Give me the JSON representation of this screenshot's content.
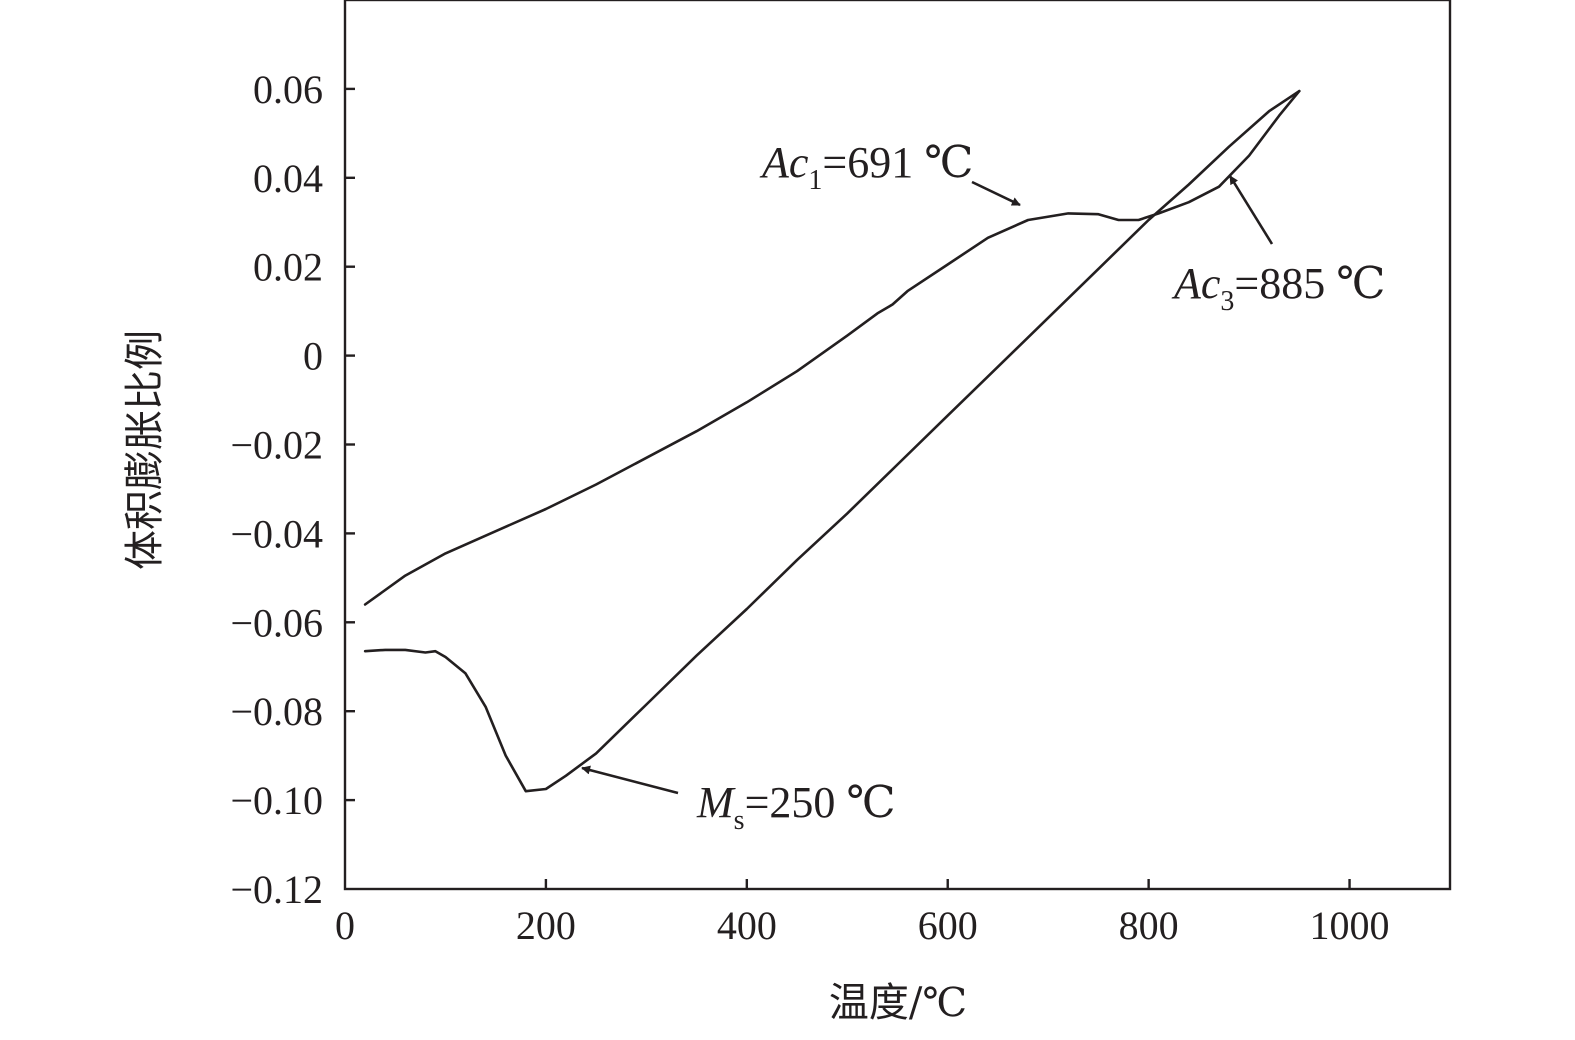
{
  "chart_data": {
    "type": "line",
    "title": "",
    "xlabel": "温度/℃",
    "ylabel": "体积膨胀比例",
    "xlim": [
      0,
      1100
    ],
    "ylim": [
      -0.12,
      0.08
    ],
    "xticks": [
      0,
      200,
      400,
      600,
      800,
      1000
    ],
    "xtick_labels": [
      "0",
      "200",
      "400",
      "600",
      "800",
      "1000"
    ],
    "yticks": [
      0.06,
      0.04,
      0.02,
      0,
      -0.02,
      -0.04,
      -0.06,
      -0.08,
      -0.1,
      -0.12
    ],
    "ytick_labels": [
      "0.06",
      "0.04",
      "0.02",
      "0",
      "−0.02",
      "−0.04",
      "−0.06",
      "−0.08",
      "−0.10",
      "−0.12"
    ],
    "grid": false,
    "series": [
      {
        "x": [
          20,
          60,
          100,
          150,
          200,
          250,
          300,
          350,
          400,
          450,
          500,
          530,
          545,
          560,
          600,
          640,
          680,
          720,
          750,
          770,
          790,
          810,
          840,
          870,
          900,
          930,
          950
        ],
        "y": [
          -0.056,
          -0.0495,
          -0.0445,
          -0.0395,
          -0.0345,
          -0.029,
          -0.023,
          -0.017,
          -0.0105,
          -0.0035,
          0.0045,
          0.0095,
          0.0115,
          0.0145,
          0.0205,
          0.0265,
          0.0305,
          0.032,
          0.0318,
          0.0305,
          0.0305,
          0.032,
          0.0345,
          0.038,
          0.045,
          0.054,
          0.0595
        ]
      },
      {
        "x": [
          950,
          920,
          880,
          840,
          800,
          750,
          700,
          650,
          600,
          550,
          500,
          450,
          400,
          350,
          300,
          250,
          220,
          200,
          180,
          160,
          140,
          120,
          100,
          90,
          80,
          60,
          40,
          20
        ],
        "y": [
          0.0595,
          0.055,
          0.047,
          0.0385,
          0.0305,
          0.0195,
          0.0085,
          -0.0025,
          -0.0135,
          -0.0245,
          -0.0355,
          -0.046,
          -0.057,
          -0.0675,
          -0.0785,
          -0.0895,
          -0.0945,
          -0.0975,
          -0.098,
          -0.09,
          -0.079,
          -0.0715,
          -0.0678,
          -0.0665,
          -0.0668,
          -0.0662,
          -0.0662,
          -0.0665
        ]
      }
    ],
    "annotations": [
      {
        "label": "Ac",
        "sub": "1",
        "value": "=691 ℃",
        "point": [
          691,
          0.031
        ]
      },
      {
        "label": "Ac",
        "sub": "3",
        "value": "=885 ℃",
        "point": [
          885,
          0.041
        ]
      },
      {
        "label": "M",
        "sub": "s",
        "value": "=250 ℃",
        "point": [
          235,
          -0.093
        ]
      }
    ]
  }
}
